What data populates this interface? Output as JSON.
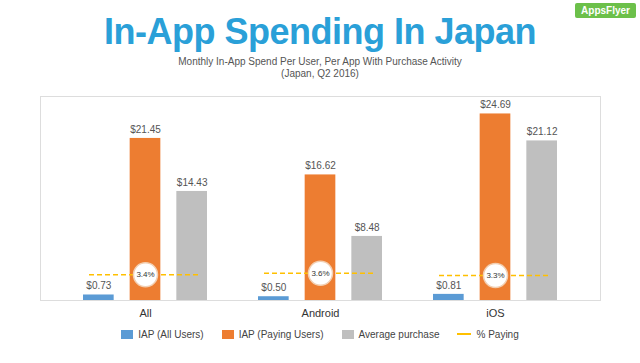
{
  "chart_data": {
    "type": "bar",
    "title": "In-App Spending In Japan",
    "subtitle": [
      "Monthly In-App Spend Per User, Per App With Purchase Activity",
      "(Japan, Q2 2016)"
    ],
    "annotations": [
      "AppsFlyer"
    ],
    "categories": [
      "All",
      "Android",
      "iOS"
    ],
    "series": [
      {
        "name": "IAP (All Users)",
        "color": "#5b9bd5",
        "values": [
          0.73,
          0.5,
          0.81
        ],
        "value_labels": [
          "$0.73",
          "$0.50",
          "$0.81"
        ]
      },
      {
        "name": "IAP (Paying Users)",
        "color": "#ed7d31",
        "values": [
          21.45,
          16.62,
          24.69
        ],
        "value_labels": [
          "$21.45",
          "$16.62",
          "$24.69"
        ]
      },
      {
        "name": "Average purchase",
        "color": "#bfbfbf",
        "values": [
          14.43,
          8.48,
          21.12
        ],
        "value_labels": [
          "$14.43",
          "$8.48",
          "$21.12"
        ]
      },
      {
        "name": "% Paying",
        "type": "line",
        "color": "#ffc000",
        "line_style": "dashed",
        "marker": "circle",
        "values": [
          3.4,
          3.6,
          3.3
        ],
        "value_labels": [
          "3.4%",
          "3.6%",
          "3.3%"
        ]
      }
    ],
    "ylim": [
      0,
      27
    ],
    "yticks": [],
    "grid": false,
    "data_labels": true,
    "tick_labels": "x",
    "legend": "bottom"
  }
}
